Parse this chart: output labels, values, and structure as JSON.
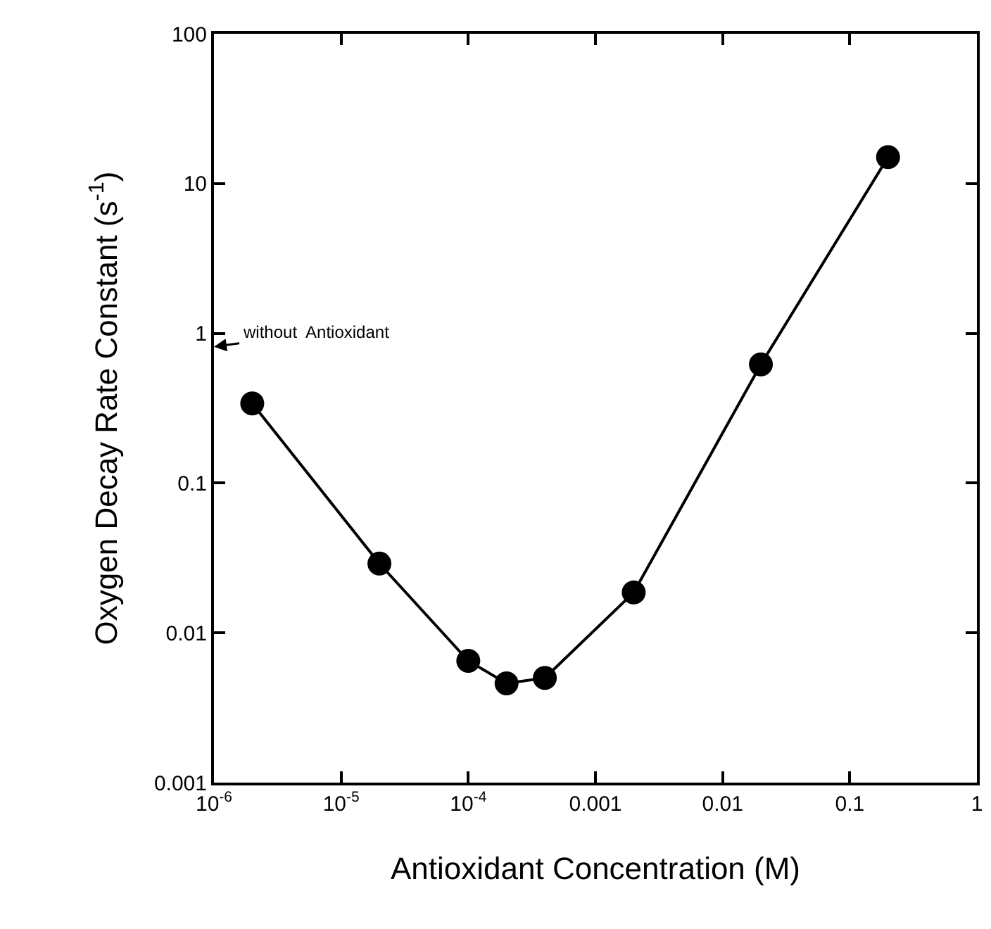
{
  "chart_data": {
    "type": "line",
    "xlabel": "Antioxidant Concentration (M)",
    "ylabel": "Oxygen Decay Rate Constant (s$^{-1}$)",
    "x": [
      2e-06,
      2e-05,
      0.0001,
      0.0002,
      0.0004,
      0.002,
      0.02,
      0.2
    ],
    "series": [
      {
        "color": "#000000",
        "values": [
          0.34,
          0.029,
          0.0065,
          0.0046,
          0.005,
          0.0186,
          0.62,
          15
        ]
      }
    ],
    "log": "xy",
    "xlim": [
      1e-06,
      1
    ],
    "ylim": [
      0.001,
      100
    ],
    "xticks": [
      {
        "value": 1e-06,
        "label": "10$^{-6}$"
      },
      {
        "value": 1e-05,
        "label": "10$^{-5}$"
      },
      {
        "value": 0.0001,
        "label": "10$^{-4}$"
      },
      0.001,
      0.01,
      0.1,
      1
    ],
    "yticks": [
      0.001,
      0.01,
      0.1,
      1,
      10,
      100
    ],
    "annotations": [
      "without  Antioxidant"
    ],
    "marker": "circle",
    "line_style": "solid"
  }
}
